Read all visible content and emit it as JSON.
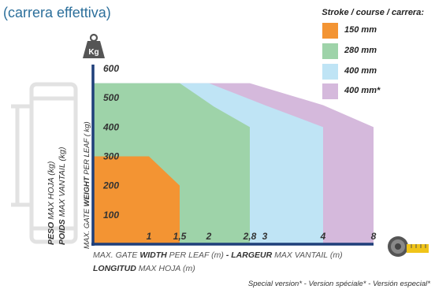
{
  "header": {
    "title": "(carrera effettiva)"
  },
  "legend": {
    "title": "Stroke / course / carrera:",
    "items": [
      {
        "label": "150 mm",
        "color": "#f39433"
      },
      {
        "label": "280 mm",
        "color": "#9ed3a9"
      },
      {
        "label": "400 mm",
        "color": "#bfe4f5"
      },
      {
        "label": "400 mm*",
        "color": "#d5b9dc"
      }
    ]
  },
  "weight_icon_label": "Kg",
  "y_axis_label_lines": [
    {
      "strong": "PESO",
      "rest": " MAX HOJA (kg)"
    },
    {
      "strong": "POIDS",
      "rest": " MAX VANTAIL (kg)"
    },
    {
      "pre": "MAX. GATE ",
      "strong": "WEIGHT",
      "rest": " PER LEAF ( kg)"
    }
  ],
  "x_axis_label_lines": [
    {
      "pre": "MAX. GATE ",
      "strong": "WIDTH",
      "rest": " PER LEAF (m)",
      "strong2": " - LARGEUR",
      "rest2": " MAX VANTAIL (m)"
    },
    {
      "pre": "",
      "strong": "LONGITUD",
      "rest": " MAX HOJA (m)",
      "strong2": "",
      "rest2": ""
    }
  ],
  "footnote": "Special version* - Version  spéciale* - Versión especial*",
  "chart_data": {
    "type": "area",
    "title": "",
    "xlabel": "MAX. GATE WIDTH PER LEAF (m) - LARGEUR MAX VANTAIL (m) LONGITUD MAX HOJA (m)",
    "ylabel": "PESO MAX HOJA (kg) POIDS MAX VANTAIL (kg) MAX. GATE WEIGHT PER LEAF (kg)",
    "x_ticks": [
      "1",
      "1,5",
      "2",
      "2,8",
      "3",
      "4",
      "8"
    ],
    "y_ticks": [
      "100",
      "200",
      "300",
      "400",
      "500",
      "600"
    ],
    "ylim": [
      0,
      600
    ],
    "grid": false,
    "legend_position": "top-right",
    "series": [
      {
        "name": "400 mm*",
        "color": "#d5b9dc",
        "points": [
          [
            0,
            0
          ],
          [
            0,
            550
          ],
          [
            2.8,
            550
          ],
          [
            4,
            475
          ],
          [
            8,
            400
          ],
          [
            8,
            0
          ]
        ]
      },
      {
        "name": "400 mm",
        "color": "#bfe4f5",
        "points": [
          [
            0,
            0
          ],
          [
            0,
            550
          ],
          [
            2,
            550
          ],
          [
            3,
            475
          ],
          [
            4,
            400
          ],
          [
            4,
            0
          ]
        ]
      },
      {
        "name": "280 mm",
        "color": "#9ed3a9",
        "points": [
          [
            0,
            0
          ],
          [
            0,
            550
          ],
          [
            1.5,
            550
          ],
          [
            2.1,
            470
          ],
          [
            2.8,
            400
          ],
          [
            2.8,
            0
          ]
        ]
      },
      {
        "name": "150 mm",
        "color": "#f39433",
        "points": [
          [
            0,
            0
          ],
          [
            0,
            300
          ],
          [
            1,
            300
          ],
          [
            1.5,
            200
          ],
          [
            1.5,
            0
          ]
        ]
      }
    ]
  }
}
